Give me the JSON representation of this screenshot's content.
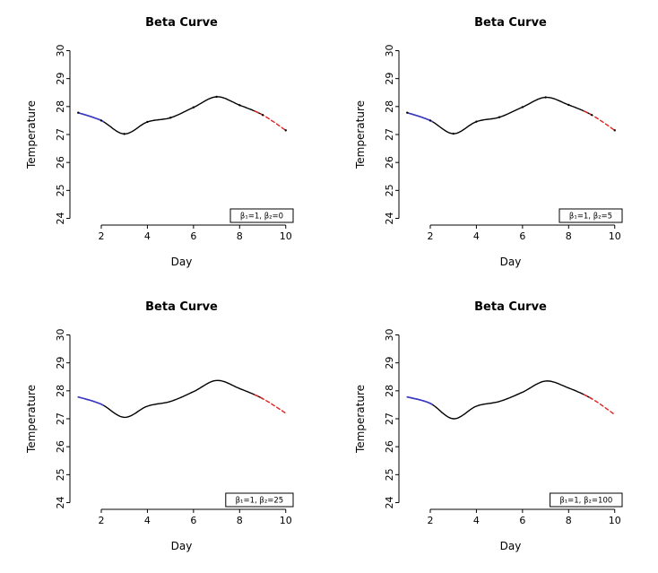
{
  "page": {
    "background": "#ffffff"
  },
  "chart_data": [
    {
      "type": "line",
      "title": "Beta Curve",
      "xlabel": "Day",
      "ylabel": "Temperature",
      "legend": "β₁=1, β₂=0",
      "xlim": [
        0.64,
        10.36
      ],
      "ylim": [
        23.76,
        30.24
      ],
      "xticks": [
        2,
        4,
        6,
        8,
        10
      ],
      "yticks": [
        24,
        25,
        26,
        27,
        28,
        29,
        30
      ],
      "x": [
        1,
        2,
        3,
        4,
        5,
        6,
        7,
        8,
        9,
        10
      ],
      "y": [
        27.78,
        27.5,
        27.02,
        27.45,
        27.6,
        27.97,
        28.35,
        28.05,
        27.7,
        27.15
      ],
      "points": true,
      "segments": [
        {
          "from": 1,
          "to": 9.0,
          "color": "#000000",
          "dash": false,
          "width": 1.4
        },
        {
          "from": 1,
          "to": 2.1,
          "color": "#3a3ac8",
          "dash": false,
          "width": 1.6
        },
        {
          "from": 8.6,
          "to": 10,
          "color": "#e02020",
          "dash": true,
          "width": 1.4
        }
      ]
    },
    {
      "type": "line",
      "title": "Beta Curve",
      "xlabel": "Day",
      "ylabel": "Temperature",
      "legend": "β₁=1, β₂=5",
      "xlim": [
        0.64,
        10.36
      ],
      "ylim": [
        23.76,
        30.24
      ],
      "xticks": [
        2,
        4,
        6,
        8,
        10
      ],
      "yticks": [
        24,
        25,
        26,
        27,
        28,
        29,
        30
      ],
      "x": [
        1,
        2,
        3,
        4,
        5,
        6,
        7,
        8,
        9,
        10
      ],
      "y": [
        27.78,
        27.5,
        27.03,
        27.46,
        27.62,
        27.98,
        28.33,
        28.06,
        27.7,
        27.15
      ],
      "points": true,
      "segments": [
        {
          "from": 1,
          "to": 9.0,
          "color": "#000000",
          "dash": false,
          "width": 1.4
        },
        {
          "from": 1,
          "to": 2.1,
          "color": "#3a3ac8",
          "dash": false,
          "width": 1.6
        },
        {
          "from": 8.6,
          "to": 10,
          "color": "#e02020",
          "dash": true,
          "width": 1.4
        }
      ]
    },
    {
      "type": "line",
      "title": "Beta Curve",
      "xlabel": "Day",
      "ylabel": "Temperature",
      "legend": "β₁=1, β₂=25",
      "xlim": [
        0.64,
        10.36
      ],
      "ylim": [
        23.76,
        30.24
      ],
      "xticks": [
        2,
        4,
        6,
        8,
        10
      ],
      "yticks": [
        24,
        25,
        26,
        27,
        28,
        29,
        30
      ],
      "x": [
        1,
        2,
        3,
        4,
        5,
        6,
        7,
        8,
        9,
        10
      ],
      "y": [
        27.78,
        27.52,
        27.05,
        27.45,
        27.62,
        27.97,
        28.37,
        28.08,
        27.72,
        27.2
      ],
      "points": false,
      "segments": [
        {
          "from": 1,
          "to": 9.0,
          "color": "#000000",
          "dash": false,
          "width": 1.4
        },
        {
          "from": 1,
          "to": 2.1,
          "color": "#3a3ac8",
          "dash": false,
          "width": 1.6
        },
        {
          "from": 8.6,
          "to": 10,
          "color": "#e02020",
          "dash": true,
          "width": 1.4
        }
      ]
    },
    {
      "type": "line",
      "title": "Beta Curve",
      "xlabel": "Day",
      "ylabel": "Temperature",
      "legend": "β₁=1, β₂=100",
      "xlim": [
        0.64,
        10.36
      ],
      "ylim": [
        23.76,
        30.24
      ],
      "xticks": [
        2,
        4,
        6,
        8,
        10
      ],
      "yticks": [
        24,
        25,
        26,
        27,
        28,
        29,
        30
      ],
      "x": [
        1,
        2,
        3,
        4,
        5,
        6,
        7,
        8,
        9,
        10
      ],
      "y": [
        27.78,
        27.55,
        27.0,
        27.45,
        27.62,
        27.95,
        28.35,
        28.1,
        27.72,
        27.15
      ],
      "points": false,
      "segments": [
        {
          "from": 1,
          "to": 9.0,
          "color": "#000000",
          "dash": false,
          "width": 1.4
        },
        {
          "from": 1,
          "to": 2.1,
          "color": "#3a3ac8",
          "dash": false,
          "width": 1.6
        },
        {
          "from": 8.6,
          "to": 10,
          "color": "#e02020",
          "dash": true,
          "width": 1.4
        }
      ]
    }
  ]
}
